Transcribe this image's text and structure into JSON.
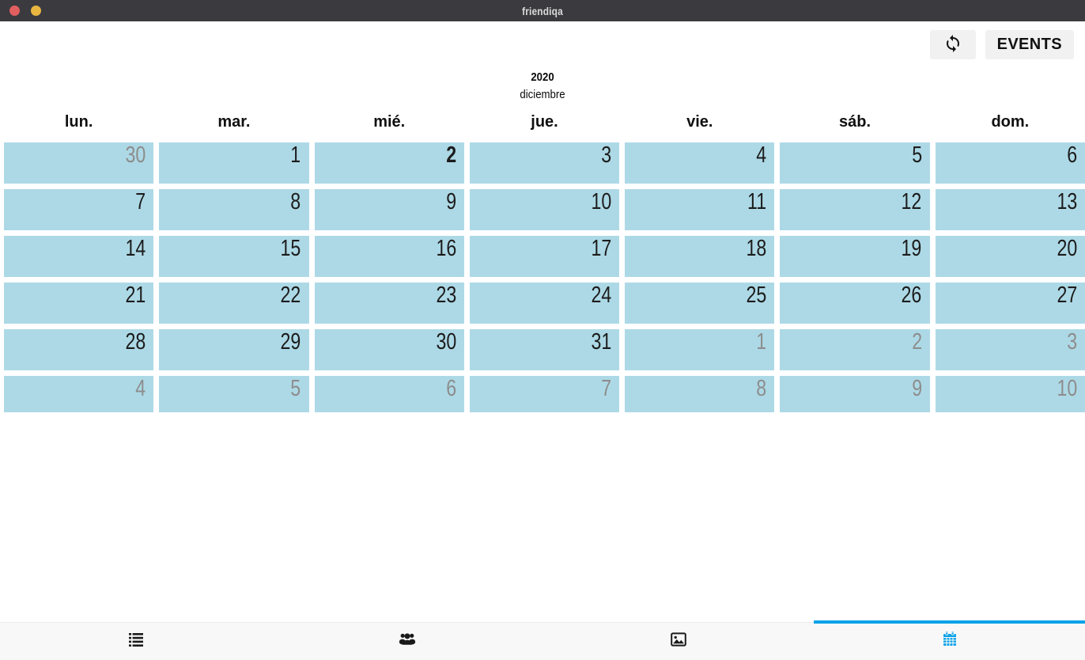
{
  "window": {
    "title": "friendiqa",
    "traffic_lights": [
      "close",
      "minimize"
    ]
  },
  "toolbar": {
    "refresh_icon": "refresh-icon",
    "events_label": "EVENTS"
  },
  "calendar": {
    "year": "2020",
    "month": "diciembre",
    "weekdays": [
      "lun.",
      "mar.",
      "mié.",
      "jue.",
      "vie.",
      "sáb.",
      "dom."
    ],
    "today": "2",
    "weeks": [
      [
        {
          "n": "30",
          "other": true
        },
        {
          "n": "1"
        },
        {
          "n": "2",
          "today": true
        },
        {
          "n": "3"
        },
        {
          "n": "4"
        },
        {
          "n": "5"
        },
        {
          "n": "6"
        }
      ],
      [
        {
          "n": "7"
        },
        {
          "n": "8"
        },
        {
          "n": "9"
        },
        {
          "n": "10"
        },
        {
          "n": "11"
        },
        {
          "n": "12"
        },
        {
          "n": "13"
        }
      ],
      [
        {
          "n": "14"
        },
        {
          "n": "15"
        },
        {
          "n": "16"
        },
        {
          "n": "17"
        },
        {
          "n": "18"
        },
        {
          "n": "19"
        },
        {
          "n": "20"
        }
      ],
      [
        {
          "n": "21"
        },
        {
          "n": "22"
        },
        {
          "n": "23"
        },
        {
          "n": "24"
        },
        {
          "n": "25"
        },
        {
          "n": "26"
        },
        {
          "n": "27"
        }
      ],
      [
        {
          "n": "28"
        },
        {
          "n": "29"
        },
        {
          "n": "30"
        },
        {
          "n": "31"
        },
        {
          "n": "1",
          "other": true
        },
        {
          "n": "2",
          "other": true
        },
        {
          "n": "3",
          "other": true
        }
      ],
      [
        {
          "n": "4",
          "other": true
        },
        {
          "n": "5",
          "other": true
        },
        {
          "n": "6",
          "other": true
        },
        {
          "n": "7",
          "other": true
        },
        {
          "n": "8",
          "other": true
        },
        {
          "n": "9",
          "other": true
        },
        {
          "n": "10",
          "other": true
        }
      ]
    ]
  },
  "tabbar": {
    "active_tab": "calendar",
    "tabs": [
      {
        "id": "news",
        "icon": "list-icon"
      },
      {
        "id": "friends",
        "icon": "group-icon"
      },
      {
        "id": "gallery",
        "icon": "image-icon"
      },
      {
        "id": "calendar",
        "icon": "calendar-icon",
        "active": true
      }
    ]
  },
  "colors": {
    "titlebar_bg": "#3a3a3f",
    "cell_bg": "#add9e6",
    "day_text": "#1c1c1c",
    "other_month_text": "#8d8d8d",
    "accent_blue": "#0aa2e8",
    "button_bg": "#f1f1f1",
    "tabbar_bg": "#f8f8f8",
    "close_red": "#e25f5f",
    "minimize_yellow": "#e8b640"
  }
}
